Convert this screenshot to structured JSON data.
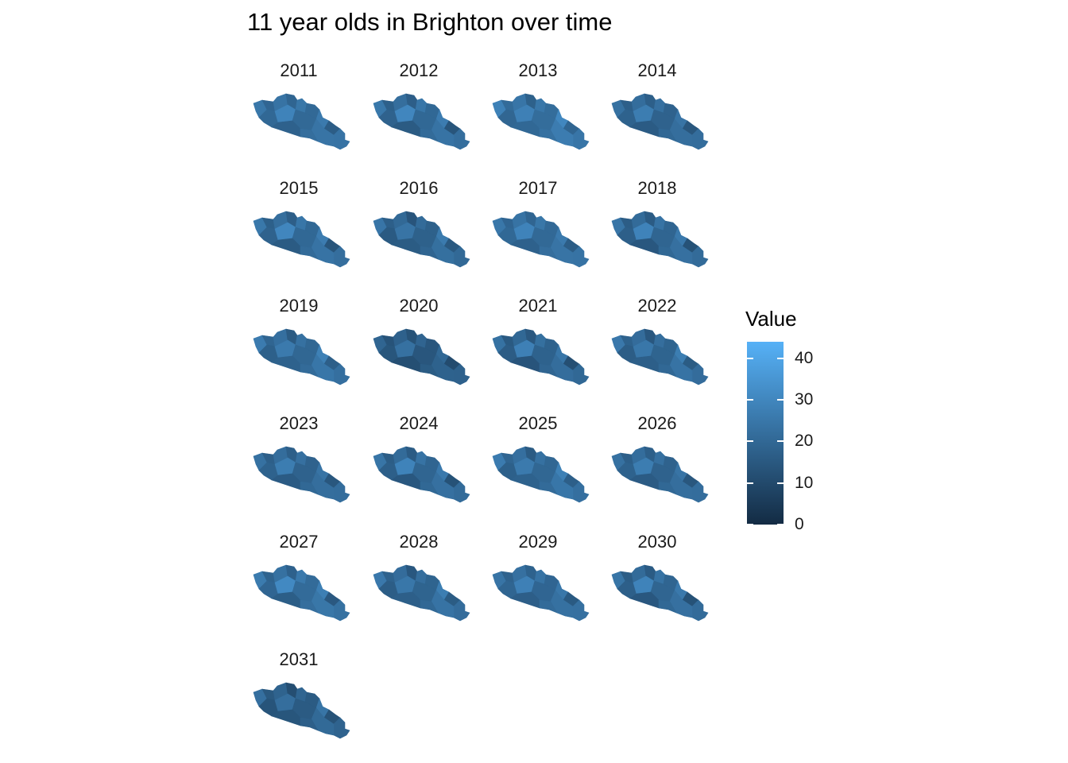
{
  "chart_data": {
    "type": "choropleth-facets",
    "title": "11 year olds in Brighton over time",
    "facets": [
      "2011",
      "2012",
      "2013",
      "2014",
      "2015",
      "2016",
      "2017",
      "2018",
      "2019",
      "2020",
      "2021",
      "2022",
      "2023",
      "2024",
      "2025",
      "2026",
      "2027",
      "2028",
      "2029",
      "2030",
      "2031"
    ],
    "facet_mean_values": [
      22,
      21,
      23,
      20,
      21,
      19,
      22,
      20,
      21,
      16,
      19,
      20,
      20,
      20,
      21,
      20,
      22,
      20,
      21,
      20,
      17
    ],
    "legend": {
      "title": "Value",
      "range": [
        0,
        44
      ],
      "ticks": [
        0,
        10,
        20,
        30,
        40
      ],
      "tick_labels": [
        "0",
        "10",
        "20",
        "30",
        "40"
      ],
      "low_color": "#132B43",
      "high_color": "#56B1F7"
    },
    "grid": false
  }
}
